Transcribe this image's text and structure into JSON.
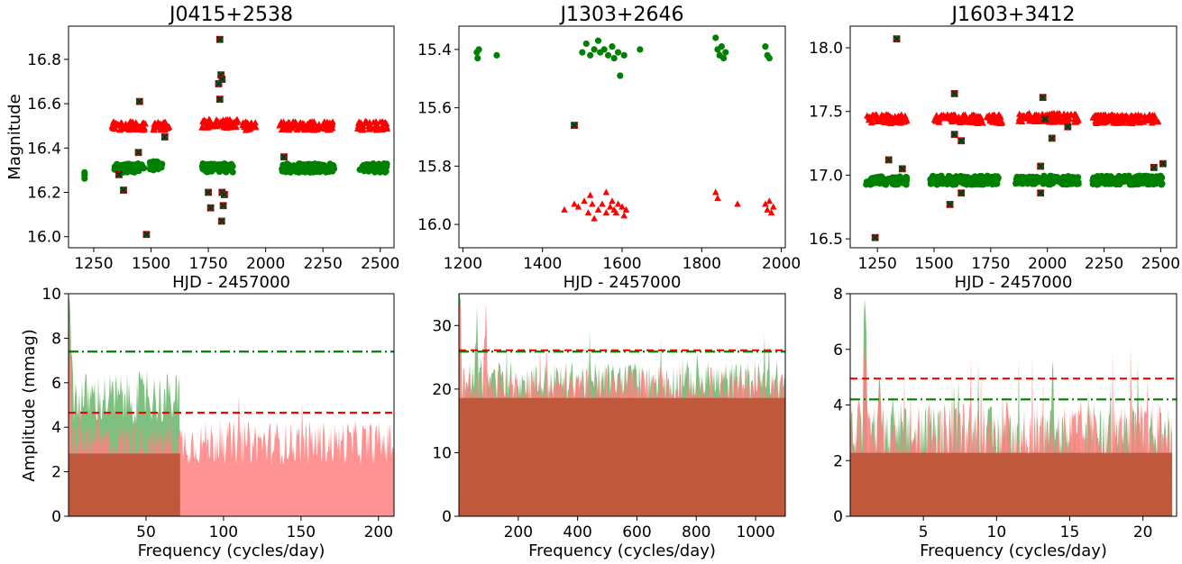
{
  "figure": {
    "ylabel_top": "Magnitude",
    "ylabel_bottom": "Amplitude (mmag)"
  },
  "colors": {
    "green": "#008000",
    "red": "#ff0000",
    "cross": "#222222",
    "green_fill": "#7fbf7f",
    "red_fill": "#ff8080",
    "overlap": "#c0583c"
  },
  "chart_data": [
    {
      "type": "scatter",
      "title": "J0415+2538",
      "xlabel": "HJD - 2457000",
      "ylabel": "Magnitude",
      "xlim": [
        1140,
        2560
      ],
      "ylim": [
        15.95,
        16.95
      ],
      "xticks": [
        1250,
        1500,
        1750,
        2000,
        2250,
        2500
      ],
      "yticks": [
        16.0,
        16.2,
        16.4,
        16.6,
        16.8
      ],
      "ytick_labels": [
        "16.0",
        "16.2",
        "16.4",
        "16.6",
        "16.8"
      ],
      "series": [
        {
          "name": "green",
          "marker": "circle",
          "clusters": [
            [
              1210,
              1210,
              16.27
            ],
            [
              1340,
              1470,
              16.31
            ],
            [
              1490,
              1550,
              16.32
            ],
            [
              1720,
              1860,
              16.31
            ],
            [
              2070,
              2300,
              16.31
            ],
            [
              2410,
              2530,
              16.31
            ]
          ]
        },
        {
          "name": "red",
          "marker": "triangle",
          "clusters": [
            [
              1330,
              1480,
              16.5
            ],
            [
              1510,
              1580,
              16.5
            ],
            [
              1720,
              1880,
              16.51
            ],
            [
              1900,
              1960,
              16.5
            ],
            [
              2060,
              2300,
              16.5
            ],
            [
              2400,
              2530,
              16.5
            ]
          ]
        }
      ],
      "outliers": [
        [
          1450,
          16.61
        ],
        [
          1800,
          16.89
        ],
        [
          1805,
          16.73
        ],
        [
          1810,
          16.71
        ],
        [
          1795,
          16.69
        ],
        [
          1800,
          16.62
        ],
        [
          1445,
          16.38
        ],
        [
          2080,
          16.36
        ],
        [
          1360,
          16.28
        ],
        [
          1380,
          16.21
        ],
        [
          1750,
          16.2
        ],
        [
          1810,
          16.2
        ],
        [
          1820,
          16.19
        ],
        [
          1760,
          16.13
        ],
        [
          1815,
          16.14
        ],
        [
          1808,
          16.07
        ],
        [
          1480,
          16.01
        ],
        [
          1560,
          16.45
        ]
      ]
    },
    {
      "type": "scatter",
      "title": "J1303+2646",
      "xlabel": "HJD - 2457000",
      "ylabel": "",
      "xlim": [
        1190,
        2010
      ],
      "ylim": [
        16.08,
        15.32
      ],
      "xticks": [
        1200,
        1400,
        1600,
        1800,
        2000
      ],
      "yticks": [
        15.4,
        15.6,
        15.8,
        16.0
      ],
      "ytick_labels": [
        "15.4",
        "15.6",
        "15.8",
        "16.0"
      ],
      "series": [
        {
          "name": "green",
          "marker": "circle",
          "points": [
            [
              1235,
              15.41
            ],
            [
              1237,
              15.43
            ],
            [
              1240,
              15.4
            ],
            [
              1285,
              15.42
            ],
            [
              1500,
              15.41
            ],
            [
              1510,
              15.38
            ],
            [
              1520,
              15.42
            ],
            [
              1530,
              15.4
            ],
            [
              1540,
              15.37
            ],
            [
              1545,
              15.41
            ],
            [
              1555,
              15.4
            ],
            [
              1565,
              15.42
            ],
            [
              1575,
              15.39
            ],
            [
              1580,
              15.43
            ],
            [
              1590,
              15.41
            ],
            [
              1595,
              15.49
            ],
            [
              1605,
              15.42
            ],
            [
              1645,
              15.4
            ],
            [
              1835,
              15.36
            ],
            [
              1840,
              15.4
            ],
            [
              1845,
              15.42
            ],
            [
              1850,
              15.39
            ],
            [
              1855,
              15.43
            ],
            [
              1860,
              15.41
            ],
            [
              1960,
              15.39
            ],
            [
              1965,
              15.42
            ],
            [
              1970,
              15.43
            ]
          ]
        },
        {
          "name": "red",
          "marker": "triangle",
          "points": [
            [
              1455,
              15.95
            ],
            [
              1480,
              15.93
            ],
            [
              1490,
              15.94
            ],
            [
              1505,
              15.92
            ],
            [
              1515,
              15.96
            ],
            [
              1525,
              15.93
            ],
            [
              1530,
              15.98
            ],
            [
              1540,
              15.95
            ],
            [
              1550,
              15.93
            ],
            [
              1560,
              15.96
            ],
            [
              1570,
              15.94
            ],
            [
              1575,
              15.92
            ],
            [
              1580,
              15.95
            ],
            [
              1585,
              15.96
            ],
            [
              1590,
              15.93
            ],
            [
              1600,
              15.94
            ],
            [
              1605,
              15.97
            ],
            [
              1610,
              15.95
            ],
            [
              1520,
              15.9
            ],
            [
              1560,
              15.89
            ],
            [
              1835,
              15.89
            ],
            [
              1840,
              15.91
            ],
            [
              1890,
              15.93
            ],
            [
              1960,
              15.93
            ],
            [
              1965,
              15.95
            ],
            [
              1970,
              15.92
            ],
            [
              1975,
              15.96
            ],
            [
              1980,
              15.94
            ]
          ]
        }
      ],
      "outliers": [
        [
          1480,
          15.66
        ]
      ]
    },
    {
      "type": "scatter",
      "title": "J1603+3412",
      "xlabel": "HJD - 2457000",
      "ylabel": "",
      "xlim": [
        1130,
        2570
      ],
      "ylim": [
        16.43,
        18.17
      ],
      "xticks": [
        1250,
        1500,
        1750,
        2000,
        2250,
        2500
      ],
      "yticks": [
        16.5,
        17.0,
        17.5,
        18.0
      ],
      "ytick_labels": [
        "16.5",
        "17.0",
        "17.5",
        "18.0"
      ],
      "series": [
        {
          "name": "green",
          "marker": "circle",
          "clusters": [
            [
              1200,
              1380,
              16.96
            ],
            [
              1480,
              1790,
              16.96
            ],
            [
              1860,
              2140,
              16.96
            ],
            [
              2200,
              2510,
              16.96
            ]
          ]
        },
        {
          "name": "red",
          "marker": "triangle",
          "clusters": [
            [
              1200,
              1380,
              17.44
            ],
            [
              1500,
              1800,
              17.44
            ],
            [
              1870,
              2140,
              17.45
            ],
            [
              2200,
              2490,
              17.44
            ]
          ]
        }
      ],
      "outliers": [
        [
          1335,
          18.07
        ],
        [
          1590,
          17.64
        ],
        [
          1590,
          17.32
        ],
        [
          1620,
          17.27
        ],
        [
          1980,
          17.61
        ],
        [
          1990,
          17.44
        ],
        [
          2020,
          17.29
        ],
        [
          2090,
          17.38
        ],
        [
          1300,
          17.12
        ],
        [
          1360,
          17.05
        ],
        [
          1970,
          17.07
        ],
        [
          1970,
          16.86
        ],
        [
          1620,
          16.86
        ],
        [
          1570,
          16.77
        ],
        [
          2470,
          17.06
        ],
        [
          2510,
          17.09
        ],
        [
          1240,
          16.51
        ]
      ]
    },
    {
      "type": "area",
      "title": "",
      "xlabel": "Frequency (cycles/day)",
      "ylabel": "Amplitude (mmag)",
      "xlim": [
        0,
        210
      ],
      "ylim": [
        0,
        10
      ],
      "xticks": [
        50,
        100,
        150,
        200
      ],
      "yticks": [
        0,
        2,
        4,
        6,
        8,
        10
      ],
      "ytick_labels": [
        "0",
        "2",
        "4",
        "6",
        "8",
        "10"
      ],
      "series": [
        {
          "name": "green",
          "x_range": [
            0,
            72
          ],
          "level": 5.3,
          "noise": 1.2,
          "spike": [
            [
              0.5,
              10
            ],
            [
              1,
              8.4
            ],
            [
              2,
              7.6
            ]
          ]
        },
        {
          "name": "red",
          "x_range": [
            0,
            210
          ],
          "level": 3.3,
          "noise": 1.0,
          "spike": [
            [
              0.5,
              8.5
            ],
            [
              1,
              7.7
            ]
          ]
        }
      ],
      "thresholds": [
        {
          "series": "green",
          "style": "dashdot",
          "value": 7.4
        },
        {
          "series": "red",
          "style": "dashed",
          "value": 4.65
        }
      ]
    },
    {
      "type": "area",
      "title": "",
      "xlabel": "Frequency (cycles/day)",
      "ylabel": "",
      "xlim": [
        0,
        1100
      ],
      "ylim": [
        0,
        35
      ],
      "xticks": [
        200,
        400,
        600,
        800,
        1000
      ],
      "yticks": [
        0,
        10,
        20,
        30
      ],
      "ytick_labels": [
        "0",
        "10",
        "20",
        "30"
      ],
      "series": [
        {
          "name": "green",
          "x_range": [
            0,
            1100
          ],
          "level": 21,
          "noise": 3.5,
          "spike": [
            [
              2,
              35
            ],
            [
              60,
              28
            ]
          ]
        },
        {
          "name": "red",
          "x_range": [
            0,
            1100
          ],
          "level": 20,
          "noise": 3.5,
          "spike": [
            [
              2,
              34
            ],
            [
              90,
              29
            ]
          ]
        }
      ],
      "thresholds": [
        {
          "series": "red",
          "style": "dashed",
          "value": 26.1
        },
        {
          "series": "green",
          "style": "dashdot",
          "value": 25.9
        }
      ]
    },
    {
      "type": "area",
      "title": "",
      "xlabel": "Frequency (cycles/day)",
      "ylabel": "",
      "xlim": [
        0,
        22.3
      ],
      "ylim": [
        0,
        8
      ],
      "xticks": [
        5,
        10,
        15,
        20
      ],
      "yticks": [
        0,
        2,
        4,
        6,
        8
      ],
      "ytick_labels": [
        "0",
        "2",
        "4",
        "6",
        "8"
      ],
      "series": [
        {
          "name": "green",
          "x_range": [
            0,
            22
          ],
          "level": 2.8,
          "noise": 1.2,
          "spike": [
            [
              1.0,
              8
            ],
            [
              2.0,
              5.3
            ],
            [
              2.9,
              4.4
            ]
          ]
        },
        {
          "name": "red",
          "x_range": [
            0,
            22
          ],
          "level": 2.9,
          "noise": 1.3,
          "spike": [
            [
              1.0,
              6.5
            ],
            [
              2.0,
              5.1
            ]
          ]
        }
      ],
      "thresholds": [
        {
          "series": "red",
          "style": "dashed",
          "value": 4.95
        },
        {
          "series": "green",
          "style": "dashdot",
          "value": 4.2
        }
      ]
    }
  ]
}
